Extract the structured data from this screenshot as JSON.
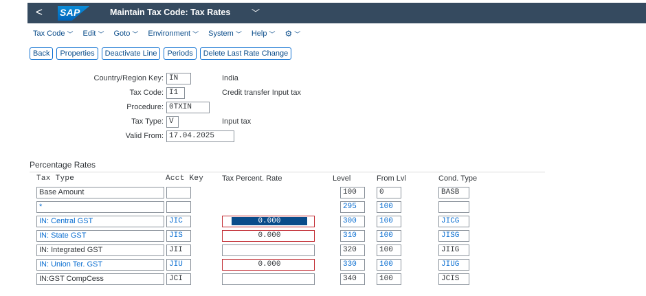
{
  "shell": {
    "back_glyph": "<",
    "logo": "SAP",
    "title": "Maintain Tax Code: Tax Rates",
    "title_chevron": "﹀"
  },
  "menu": {
    "items": [
      {
        "label": "Tax Code"
      },
      {
        "label": "Edit"
      },
      {
        "label": "Goto"
      },
      {
        "label": "Environment"
      },
      {
        "label": "System"
      },
      {
        "label": "Help"
      }
    ],
    "dropdown_glyph": "﹀",
    "gear_glyph": "⚙"
  },
  "toolbar": {
    "back": "Back",
    "properties": "Properties",
    "deactivate_line": "Deactivate Line",
    "periods": "Periods",
    "delete_last_rate_change": "Delete Last Rate Change"
  },
  "header": {
    "country_label": "Country/Region Key:",
    "country_value": "IN",
    "country_desc": "India",
    "taxcode_label": "Tax Code:",
    "taxcode_value": "I1",
    "taxcode_desc": "Credit transfer Input tax",
    "procedure_label": "Procedure:",
    "procedure_value": "0TXIN",
    "taxtype_label": "Tax Type:",
    "taxtype_value": "V",
    "taxtype_desc": "Input tax",
    "validfrom_label": "Valid From:",
    "validfrom_value": "17.04.2025"
  },
  "rates": {
    "title": "Percentage Rates",
    "columns": {
      "tax_type": "Tax Type",
      "acct_key": "Acct Key",
      "tax_percent": "Tax Percent. Rate",
      "level": "Level",
      "from_lvl": "From Lvl",
      "cond_type": "Cond. Type"
    },
    "rows": [
      {
        "tax_type": "Base Amount",
        "acct_key": "",
        "rate": "",
        "level": "100",
        "from_lvl": "0",
        "cond_type": "BASB"
      },
      {
        "tax_type": "*",
        "acct_key": "",
        "rate": "",
        "level": "295",
        "from_lvl": "100",
        "cond_type": ""
      },
      {
        "tax_type": "IN: Central GST",
        "acct_key": "JIC",
        "rate": "0.000",
        "level": "300",
        "from_lvl": "100",
        "cond_type": "JICG"
      },
      {
        "tax_type": "IN: State GST",
        "acct_key": "JIS",
        "rate": "0.000",
        "level": "310",
        "from_lvl": "100",
        "cond_type": "JISG"
      },
      {
        "tax_type": "IN: Integrated GST",
        "acct_key": "JII",
        "rate": "",
        "level": "320",
        "from_lvl": "100",
        "cond_type": "JIIG"
      },
      {
        "tax_type": "IN: Union Ter. GST",
        "acct_key": "JIU",
        "rate": "0.000",
        "level": "330",
        "from_lvl": "100",
        "cond_type": "JIUG"
      },
      {
        "tax_type": "IN:GST CompCess",
        "acct_key": "JCI",
        "rate": "",
        "level": "340",
        "from_lvl": "100",
        "cond_type": "JCIS"
      }
    ]
  },
  "colors": {
    "shell_bg": "#354a5f",
    "link_blue": "#0a6ed1",
    "error_red": "#c0262d",
    "selection": "#0a4c8a"
  }
}
